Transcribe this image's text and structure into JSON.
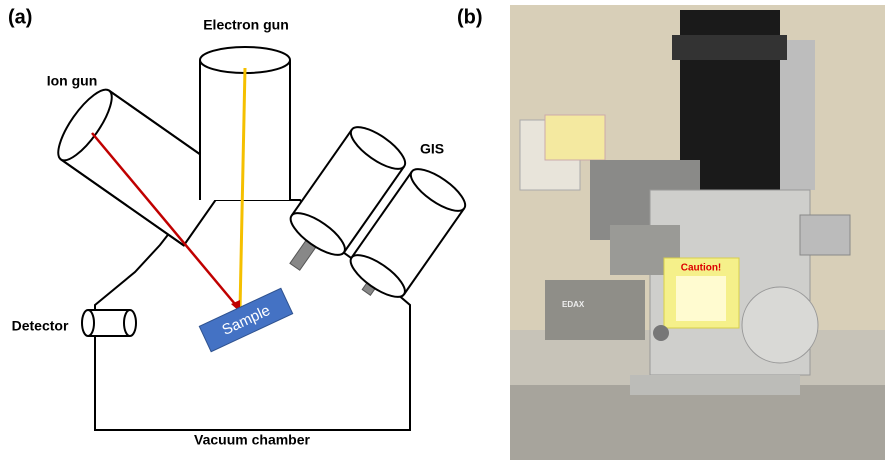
{
  "panel_a": {
    "label": "(a)",
    "electron_gun": "Electron gun",
    "ion_gun": "Ion gun",
    "gis": "GIS",
    "detector": "Detector",
    "sample": "Sample",
    "chamber": "Vacuum chamber"
  },
  "panel_b": {
    "label": "(b)",
    "caution": "Caution!",
    "brand": "EDAX"
  }
}
